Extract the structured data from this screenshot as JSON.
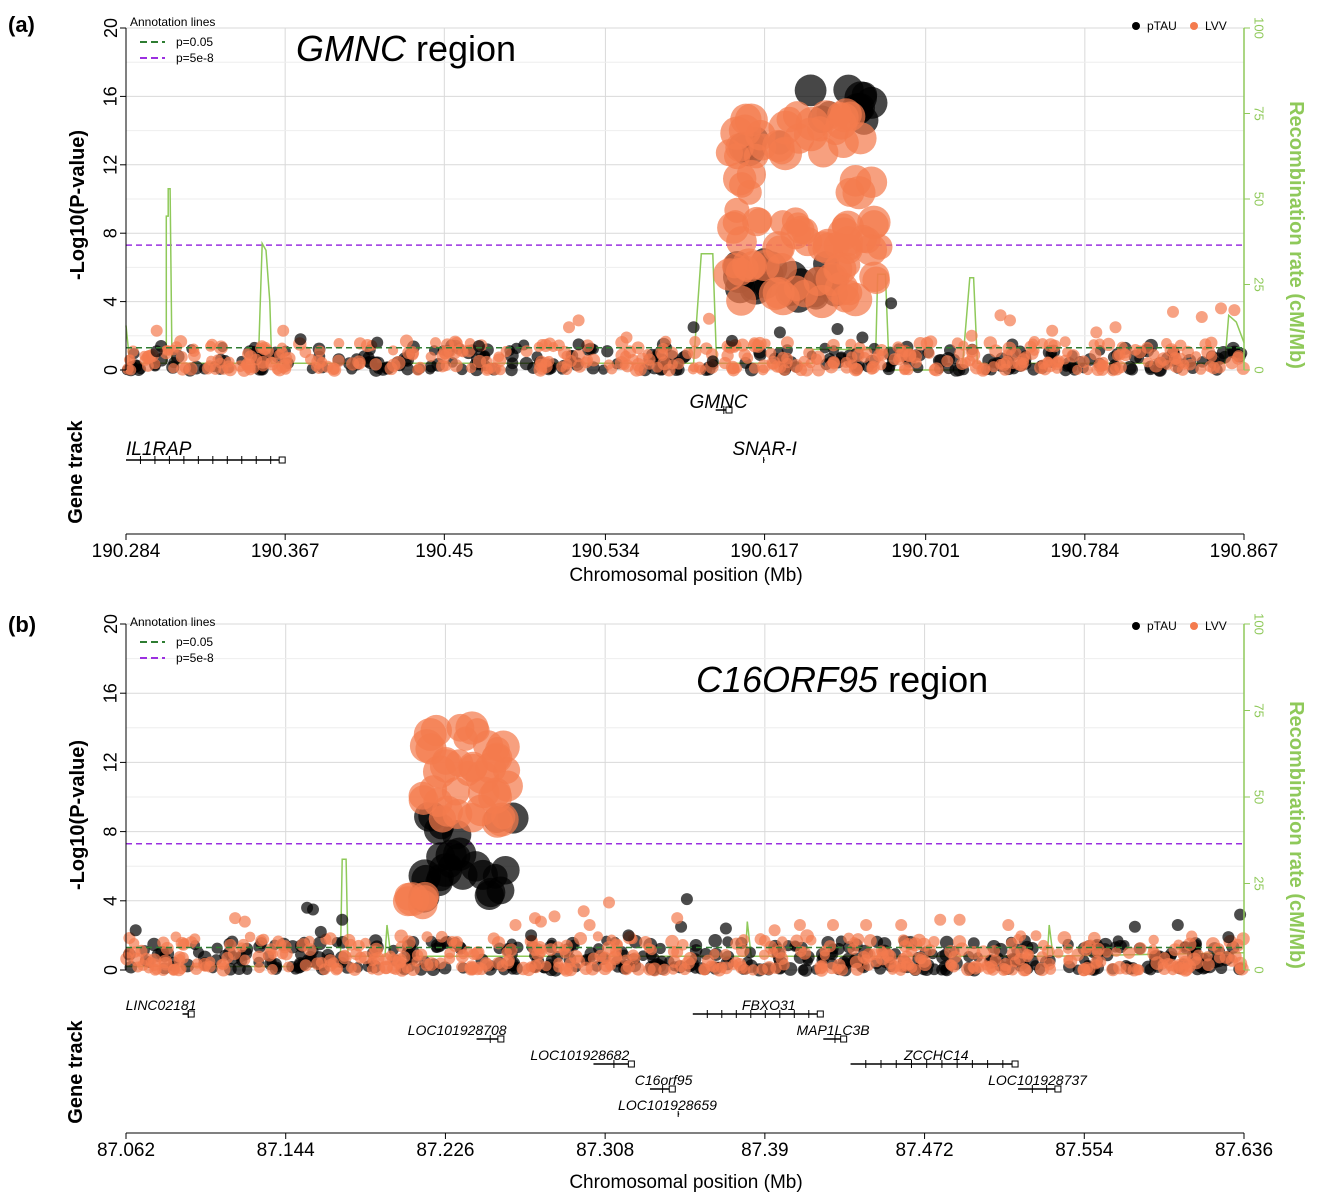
{
  "colors": {
    "ptau": "#000000",
    "lvv": "#f47b4e",
    "recomb": "#8fc95a",
    "sig005": "#2e7d32",
    "gw": "#9b30e0",
    "grid": "#d9d9d9"
  },
  "legend": {
    "annotation_title": "Annotation lines",
    "line1_label": "p=0.05",
    "line2_label": "p=5e-8",
    "series1": "pTAU",
    "series2": "LVV"
  },
  "chart_data": [
    {
      "panel_label": "(a)",
      "type": "scatter",
      "title_gene": "GMNC",
      "title_rest": " region",
      "xlabel": "Chromosomal position (Mb)",
      "ylabel": "-Log10(P-value)",
      "y2label": "Recombination rate (cM/Mb)",
      "gene_track_label": "Gene track",
      "xlim": [
        190.284,
        190.867
      ],
      "xticks": [
        "190.284",
        "190.367",
        "190.45",
        "190.534",
        "190.617",
        "190.701",
        "190.784",
        "190.867"
      ],
      "ylim": [
        0,
        20
      ],
      "yticks": [
        "0",
        "4",
        "8",
        "12",
        "16",
        "20"
      ],
      "y2lim": [
        0,
        100
      ],
      "y2ticks": [
        "0",
        "25",
        "50",
        "75",
        "100"
      ],
      "lines": {
        "p005": 1.3,
        "gw": 7.3
      },
      "grid": true,
      "legend_position": "top-right",
      "series": [
        {
          "name": "pTAU",
          "clusters": [
            {
              "x": [
                190.597,
                190.66
              ],
              "y": [
                4.2,
                6.5
              ],
              "count": 22
            },
            {
              "x": [
                190.64,
                190.678
              ],
              "y": [
                14.5,
                16.4
              ],
              "count": 10
            },
            {
              "x": [
                190.605,
                190.625
              ],
              "y": [
                12.5,
                14.0
              ],
              "count": 5
            }
          ],
          "noise": {
            "y_max": 1.5,
            "count": 280
          },
          "scattered": [
            [
              190.375,
              1.8
            ],
            [
              190.415,
              1.6
            ],
            [
              190.52,
              1.5
            ],
            [
              190.58,
              2.5
            ],
            [
              190.6,
              1.7
            ],
            [
              190.625,
              2.2
            ],
            [
              190.655,
              2.4
            ],
            [
              190.668,
              1.9
            ],
            [
              190.683,
              3.9
            ],
            [
              190.3,
              1.1
            ],
            [
              190.468,
              1.4
            ],
            [
              190.59,
              0.5
            ]
          ]
        },
        {
          "name": "LVV",
          "clusters": [
            {
              "x": [
                190.598,
                190.678
              ],
              "y": [
                12.5,
                15.0
              ],
              "count": 30
            },
            {
              "x": [
                190.598,
                190.678
              ],
              "y": [
                7.0,
                8.8
              ],
              "count": 30
            },
            {
              "x": [
                190.598,
                190.678
              ],
              "y": [
                3.9,
                6.2
              ],
              "count": 26
            },
            {
              "x": [
                190.598,
                190.612
              ],
              "y": [
                9.0,
                11.5
              ],
              "count": 5
            },
            {
              "x": [
                190.66,
                190.678
              ],
              "y": [
                9.0,
                11.5
              ],
              "count": 4
            }
          ],
          "noise": {
            "y_max": 1.7,
            "count": 380
          },
          "scattered": [
            [
              190.3,
              2.3
            ],
            [
              190.366,
              2.3
            ],
            [
              190.515,
              2.5
            ],
            [
              190.52,
              2.9
            ],
            [
              190.545,
              1.9
            ],
            [
              190.588,
              3.0
            ],
            [
              190.74,
              3.2
            ],
            [
              190.745,
              2.9
            ],
            [
              190.83,
              3.4
            ],
            [
              190.845,
              3.1
            ],
            [
              190.855,
              3.6
            ],
            [
              190.862,
              3.5
            ],
            [
              190.8,
              2.5
            ],
            [
              190.767,
              2.3
            ],
            [
              190.79,
              2.2
            ],
            [
              190.725,
              2.0
            ]
          ]
        }
      ],
      "recomb": [
        [
          190.284,
          13
        ],
        [
          190.286,
          2
        ],
        [
          190.305,
          2
        ],
        [
          190.305,
          45
        ],
        [
          190.306,
          45
        ],
        [
          190.306,
          53
        ],
        [
          190.307,
          53
        ],
        [
          190.308,
          2
        ],
        [
          190.353,
          2
        ],
        [
          190.355,
          37
        ],
        [
          190.357,
          35
        ],
        [
          190.359,
          20
        ],
        [
          190.36,
          2
        ],
        [
          190.58,
          2
        ],
        [
          190.584,
          34
        ],
        [
          190.59,
          34
        ],
        [
          190.592,
          2
        ],
        [
          190.642,
          2
        ],
        [
          190.642,
          6
        ],
        [
          190.675,
          6
        ],
        [
          190.676,
          28
        ],
        [
          190.68,
          28
        ],
        [
          190.682,
          0
        ],
        [
          190.72,
          0
        ],
        [
          190.724,
          27
        ],
        [
          190.726,
          27
        ],
        [
          190.728,
          2
        ],
        [
          190.857,
          2
        ],
        [
          190.859,
          16
        ],
        [
          190.863,
          14
        ],
        [
          190.867,
          8
        ]
      ],
      "genes": [
        {
          "name": "IL1RAP",
          "x0": 190.284,
          "x1": 190.367,
          "row": 2,
          "label_x": 190.284,
          "label_anchor": "start"
        },
        {
          "name": "GMNC",
          "x0": 190.5915,
          "x1": 190.6,
          "row": 1,
          "label_x": 190.593,
          "label_anchor": "middle"
        },
        {
          "name": "SNAR-I",
          "x0": 190.6165,
          "x1": 190.617,
          "row": 2,
          "label_x": 190.617,
          "label_anchor": "middle"
        }
      ]
    },
    {
      "panel_label": "(b)",
      "type": "scatter",
      "title_gene": "C16ORF95",
      "title_rest": " region",
      "xlabel": "Chromosomal position (Mb)",
      "ylabel": "-Log10(P-value)",
      "y2label": "Recombination rate (cM/Mb)",
      "gene_track_label": "Gene track",
      "xlim": [
        87.062,
        87.636
      ],
      "xticks": [
        "87.062",
        "87.144",
        "87.226",
        "87.308",
        "87.39",
        "87.472",
        "87.554",
        "87.636"
      ],
      "ylim": [
        0,
        20
      ],
      "yticks": [
        "0",
        "4",
        "8",
        "12",
        "16",
        "20"
      ],
      "y2lim": [
        0,
        100
      ],
      "y2ticks": [
        "0",
        "25",
        "50",
        "75",
        "100"
      ],
      "lines": {
        "p005": 1.3,
        "gw": 7.3
      },
      "grid": true,
      "legend_position": "top-right",
      "series": [
        {
          "name": "pTAU",
          "clusters": [
            {
              "x": [
                87.214,
                87.262
              ],
              "y": [
                4.0,
                9.0
              ],
              "count": 26
            }
          ],
          "noise": {
            "y_max": 1.7,
            "count": 380
          },
          "scattered": [
            [
              87.155,
              3.6
            ],
            [
              87.158,
              3.5
            ],
            [
              87.173,
              2.9
            ],
            [
              87.162,
              2.2
            ],
            [
              87.35,
              4.1
            ],
            [
              87.634,
              3.2
            ],
            [
              87.602,
              2.6
            ],
            [
              87.58,
              2.5
            ],
            [
              87.347,
              2.5
            ],
            [
              87.37,
              2.4
            ],
            [
              87.628,
              1.9
            ],
            [
              87.32,
              2.0
            ],
            [
              87.27,
              2.0
            ],
            [
              87.067,
              2.3
            ]
          ]
        },
        {
          "name": "LVV",
          "clusters": [
            {
              "x": [
                87.214,
                87.26
              ],
              "y": [
                8.5,
                14.2
              ],
              "count": 40
            },
            {
              "x": [
                87.205,
                87.22
              ],
              "y": [
                3.5,
                5.0
              ],
              "count": 6
            }
          ],
          "noise": {
            "y_max": 2.0,
            "count": 420
          },
          "scattered": [
            [
              87.118,
              3.0
            ],
            [
              87.123,
              2.8
            ],
            [
              87.272,
              3.0
            ],
            [
              87.262,
              2.6
            ],
            [
              87.282,
              3.1
            ],
            [
              87.275,
              2.8
            ],
            [
              87.297,
              3.4
            ],
            [
              87.31,
              3.9
            ],
            [
              87.3,
              2.6
            ],
            [
              87.345,
              3.0
            ],
            [
              87.442,
              2.6
            ],
            [
              87.48,
              2.9
            ],
            [
              87.49,
              2.9
            ],
            [
              87.515,
              2.6
            ],
            [
              87.46,
              2.6
            ],
            [
              87.408,
              2.6
            ],
            [
              87.425,
              2.6
            ],
            [
              87.395,
              2.3
            ]
          ]
        }
      ],
      "recomb": [
        [
          87.062,
          1
        ],
        [
          87.172,
          1
        ],
        [
          87.173,
          32
        ],
        [
          87.175,
          32
        ],
        [
          87.176,
          4
        ],
        [
          87.195,
          4
        ],
        [
          87.196,
          13
        ],
        [
          87.198,
          4
        ],
        [
          87.38,
          4
        ],
        [
          87.381,
          14
        ],
        [
          87.383,
          4
        ],
        [
          87.535,
          4
        ],
        [
          87.536,
          13
        ],
        [
          87.538,
          4
        ],
        [
          87.636,
          5
        ]
      ],
      "genes": [
        {
          "name": "LINC02181",
          "x0": 87.091,
          "x1": 87.097,
          "row": 0,
          "label_x": 87.08,
          "label_anchor": "middle"
        },
        {
          "name": "FBXO31",
          "x0": 87.353,
          "x1": 87.42,
          "row": 0,
          "label_x": 87.392,
          "label_anchor": "middle"
        },
        {
          "name": "LOC101928708",
          "x0": 87.242,
          "x1": 87.256,
          "row": 1,
          "label_x": 87.232,
          "label_anchor": "middle"
        },
        {
          "name": "MAP1LC3B",
          "x0": 87.42,
          "x1": 87.432,
          "row": 1,
          "label_x": 87.425,
          "label_anchor": "middle"
        },
        {
          "name": "LOC101928682",
          "x0": 87.302,
          "x1": 87.323,
          "row": 2,
          "label_x": 87.295,
          "label_anchor": "middle"
        },
        {
          "name": "ZCCHC14",
          "x0": 87.434,
          "x1": 87.52,
          "row": 2,
          "label_x": 87.478,
          "label_anchor": "middle"
        },
        {
          "name": "C16orf95",
          "x0": 87.331,
          "x1": 87.344,
          "row": 3,
          "label_x": 87.338,
          "label_anchor": "middle"
        },
        {
          "name": "LOC101928737",
          "x0": 87.52,
          "x1": 87.542,
          "row": 3,
          "label_x": 87.53,
          "label_anchor": "middle"
        },
        {
          "name": "LOC101928659",
          "x0": 87.3455,
          "x1": 87.346,
          "row": 4,
          "label_x": 87.34,
          "label_anchor": "middle"
        }
      ]
    }
  ]
}
